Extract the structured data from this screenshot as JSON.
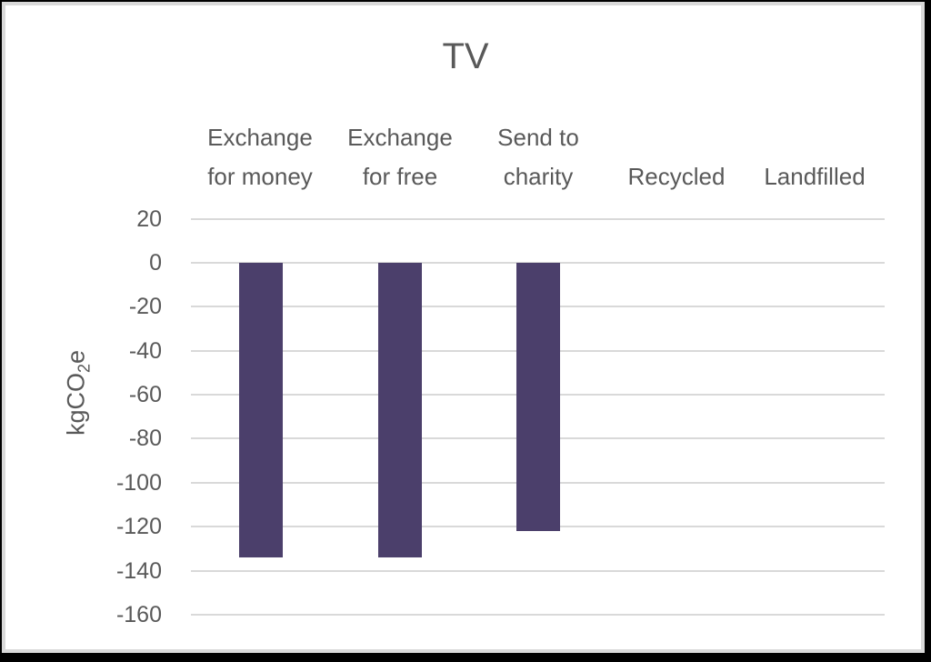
{
  "chart_data": {
    "type": "bar",
    "title": "TV",
    "categories": [
      "Exchange for money",
      "Exchange for free",
      "Send to charity",
      "Recycled",
      "Landfilled"
    ],
    "category_label_lines": [
      [
        "Exchange",
        "for money"
      ],
      [
        "Exchange",
        "for free"
      ],
      [
        "Send to",
        "charity"
      ],
      [
        "Recycled"
      ],
      [
        "Landfilled"
      ]
    ],
    "values": [
      -134,
      -134,
      -122,
      0,
      0
    ],
    "xlabel": "",
    "ylabel": "kgCO2e",
    "ylabel_parts": {
      "pre": "kgCO",
      "sub": "2",
      "post": "e"
    },
    "ylim": [
      -160,
      20
    ],
    "yticks": [
      20,
      0,
      -20,
      -40,
      -60,
      -80,
      -100,
      -120,
      -140,
      -160
    ],
    "ytick_labels": [
      "20",
      "0",
      "-20",
      "-40",
      "-60",
      "-80",
      "-100",
      "-120",
      "-140",
      "-160"
    ],
    "grid": true,
    "legend": null,
    "x_axis_position": "top",
    "bar_color": "#4b3f6b"
  }
}
